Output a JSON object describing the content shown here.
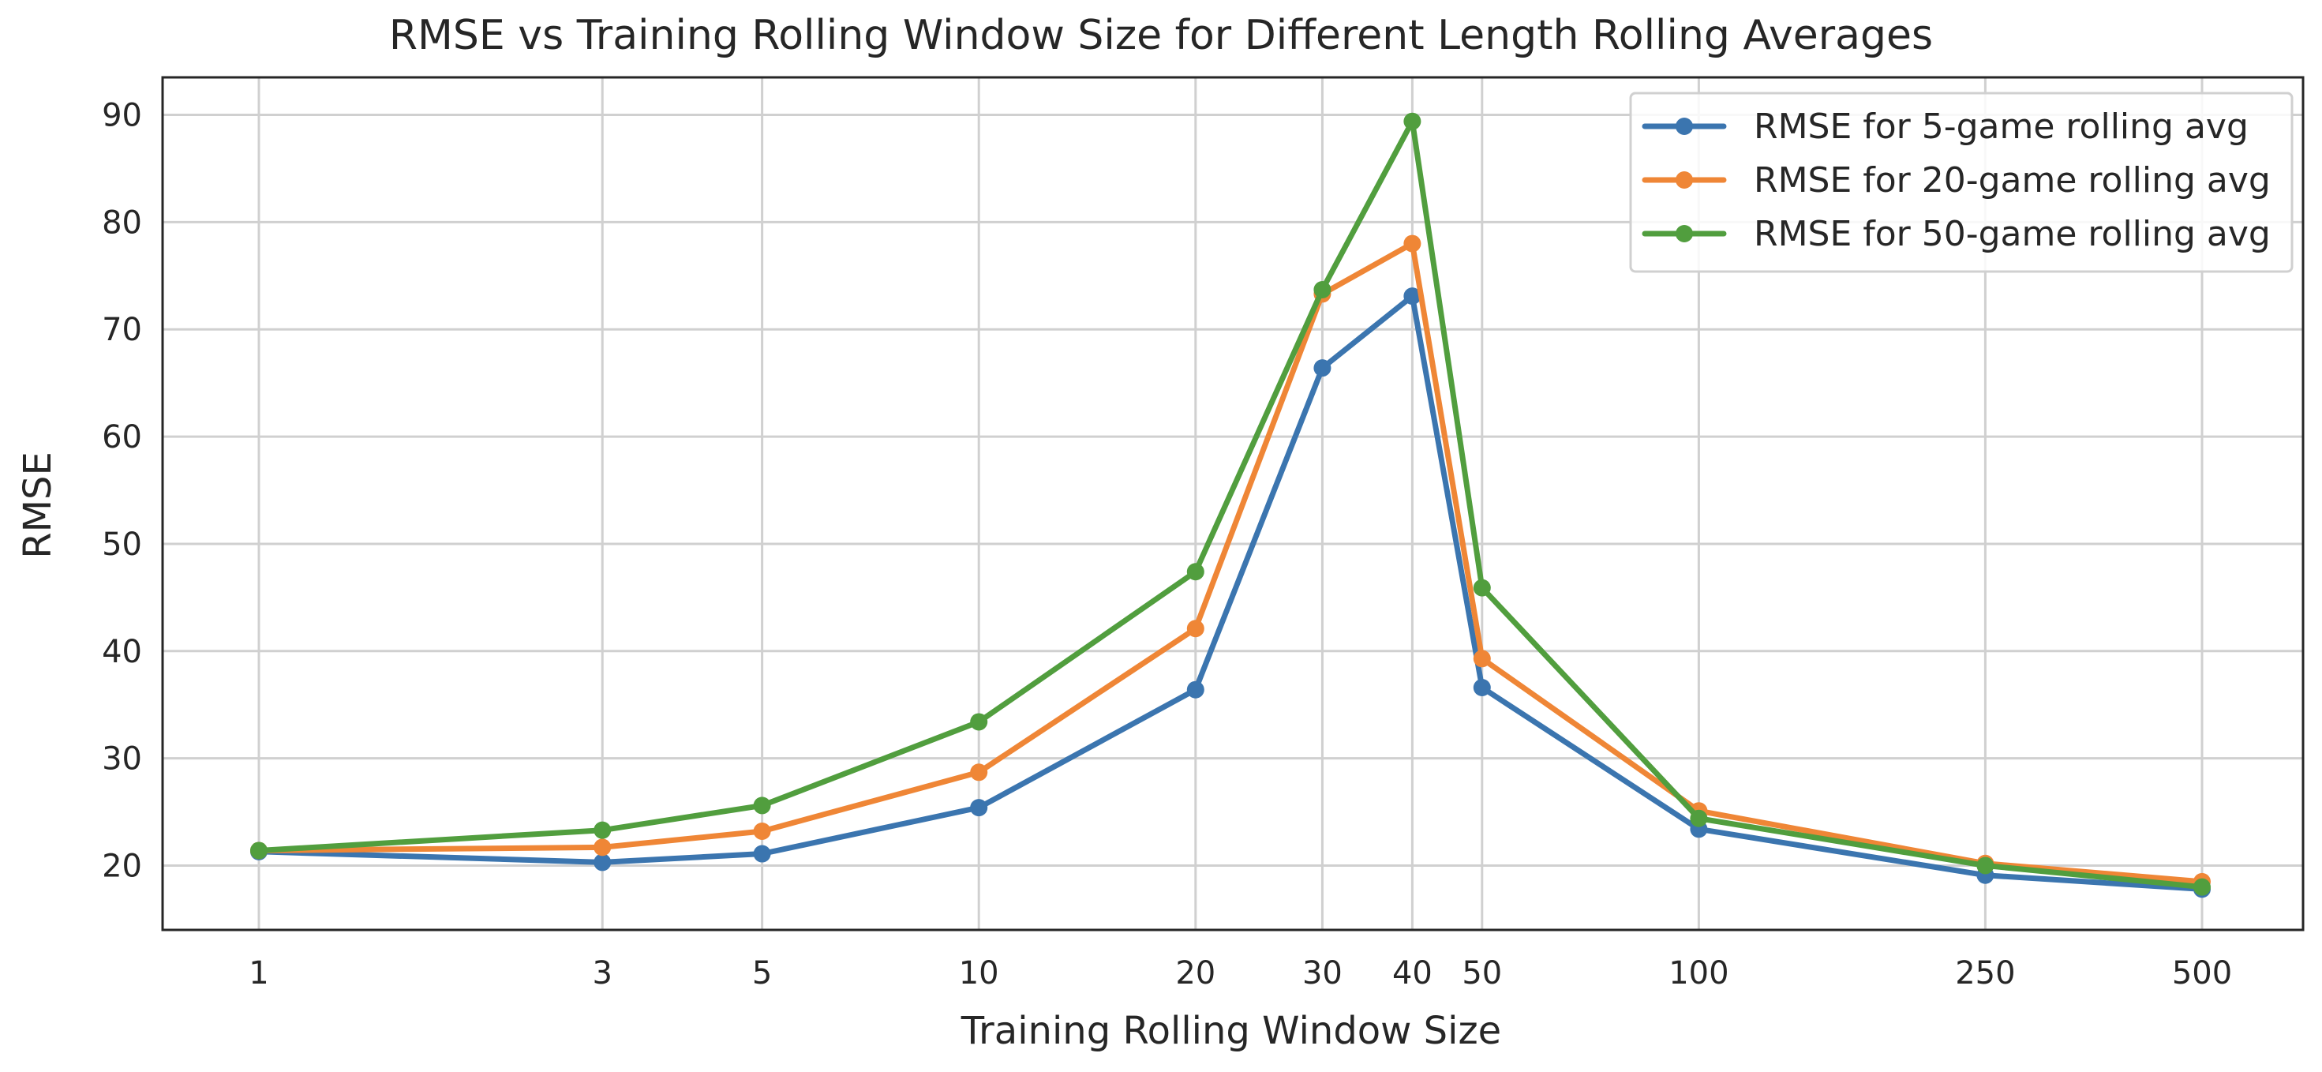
{
  "chart_data": {
    "type": "line",
    "title": "RMSE vs Training Rolling Window Size for Different Length Rolling Averages",
    "xlabel": "Training Rolling Window Size",
    "ylabel": "RMSE",
    "x_scale": "log",
    "x": [
      1,
      3,
      5,
      10,
      20,
      30,
      40,
      50,
      100,
      250,
      500
    ],
    "x_tick_labels": [
      "1",
      "3",
      "5",
      "10",
      "20",
      "30",
      "40",
      "50",
      "100",
      "250",
      "500"
    ],
    "y_ticks": [
      20,
      30,
      40,
      50,
      60,
      70,
      80,
      90
    ],
    "y_tick_labels": [
      "20",
      "30",
      "40",
      "50",
      "60",
      "70",
      "80",
      "90"
    ],
    "ylim": [
      14,
      93.5
    ],
    "grid": true,
    "legend_position": "top-right",
    "series": [
      {
        "name": "RMSE for 5-game rolling avg",
        "color": "#3b75af",
        "values": [
          21.3,
          20.3,
          21.1,
          25.4,
          36.4,
          66.4,
          73.1,
          36.6,
          23.4,
          19.1,
          17.8
        ]
      },
      {
        "name": "RMSE for 20-game rolling avg",
        "color": "#ef8636",
        "values": [
          21.4,
          21.7,
          23.2,
          28.7,
          42.1,
          73.3,
          78.0,
          39.3,
          25.1,
          20.2,
          18.5
        ]
      },
      {
        "name": "RMSE for 50-game rolling avg",
        "color": "#519e3e",
        "values": [
          21.4,
          23.3,
          25.6,
          33.4,
          47.4,
          73.7,
          89.4,
          45.9,
          24.4,
          20.0,
          18.0
        ]
      }
    ]
  }
}
